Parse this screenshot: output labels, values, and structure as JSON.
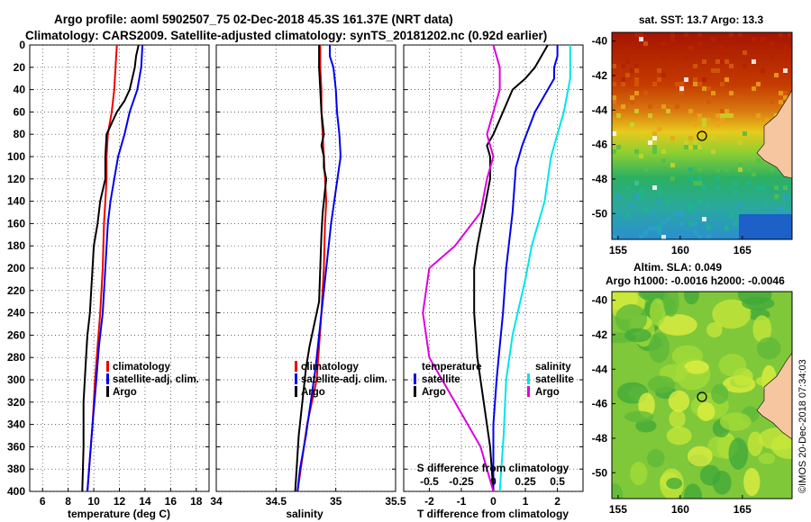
{
  "header": {
    "title_line1": "Argo profile: aoml 5902507_75 02-Dec-2018 45.3S 161.37E (NRT data)",
    "title_line2": "Climatology: CARS2009. Satellite-adjusted climatology: synTS_20181202.nc (0.92d earlier)"
  },
  "credit": "©IMOS 20-Dec-2018 07:34:03",
  "colors": {
    "climatology": "#ee0000",
    "satellite": "#0000ee",
    "argo": "#000000",
    "sal_satellite": "#00e5e5",
    "sal_argo": "#dd00dd",
    "ocean_warm": "#c43a00",
    "land": "#f5c6a0"
  },
  "chart_data": [
    {
      "id": "temperature",
      "type": "line",
      "xlabel": "temperature (deg C)",
      "ylabel": "",
      "xlim": [
        5,
        19
      ],
      "ylim": [
        0,
        400
      ],
      "x_ticks": [
        6,
        8,
        10,
        12,
        14,
        16,
        18
      ],
      "y_ticks": [
        0,
        20,
        40,
        60,
        80,
        100,
        120,
        140,
        160,
        180,
        200,
        220,
        240,
        260,
        280,
        300,
        320,
        340,
        360,
        380,
        400
      ],
      "legend": [
        "climatology",
        "satellite-adj. clim.",
        "Argo"
      ],
      "series": [
        {
          "name": "climatology",
          "color_key": "climatology",
          "points": [
            [
              11.8,
              0
            ],
            [
              11.7,
              20
            ],
            [
              11.6,
              40
            ],
            [
              11.4,
              60
            ],
            [
              11.1,
              80
            ],
            [
              11.0,
              100
            ],
            [
              11.0,
              120
            ],
            [
              10.9,
              140
            ],
            [
              10.8,
              160
            ],
            [
              10.7,
              200
            ],
            [
              10.5,
              240
            ],
            [
              10.3,
              270
            ],
            [
              10.1,
              300
            ],
            [
              9.9,
              340
            ],
            [
              9.7,
              370
            ],
            [
              9.5,
              400
            ]
          ]
        },
        {
          "name": "satellite-adj. clim.",
          "color_key": "satellite",
          "points": [
            [
              13.8,
              0
            ],
            [
              13.7,
              20
            ],
            [
              13.4,
              40
            ],
            [
              12.8,
              60
            ],
            [
              12.4,
              80
            ],
            [
              11.9,
              100
            ],
            [
              11.6,
              120
            ],
            [
              11.3,
              140
            ],
            [
              11.1,
              160
            ],
            [
              10.9,
              200
            ],
            [
              10.7,
              240
            ],
            [
              10.4,
              270
            ],
            [
              10.2,
              300
            ],
            [
              9.9,
              340
            ],
            [
              9.7,
              370
            ],
            [
              9.5,
              400
            ]
          ]
        },
        {
          "name": "Argo",
          "color_key": "argo",
          "points": [
            [
              13.5,
              0
            ],
            [
              13.3,
              10
            ],
            [
              13.2,
              20
            ],
            [
              12.8,
              40
            ],
            [
              12.4,
              50
            ],
            [
              11.8,
              60
            ],
            [
              11.4,
              70
            ],
            [
              11.0,
              80
            ],
            [
              10.9,
              100
            ],
            [
              10.9,
              120
            ],
            [
              10.5,
              140
            ],
            [
              10.3,
              160
            ],
            [
              10.0,
              180
            ],
            [
              9.9,
              200
            ],
            [
              9.8,
              220
            ],
            [
              9.7,
              240
            ],
            [
              9.5,
              260
            ],
            [
              9.4,
              280
            ],
            [
              9.3,
              300
            ],
            [
              9.2,
              320
            ],
            [
              9.2,
              360
            ],
            [
              9.1,
              400
            ]
          ]
        }
      ]
    },
    {
      "id": "salinity",
      "type": "line",
      "xlabel": "salinity",
      "ylabel": "",
      "xlim": [
        34,
        35.5
      ],
      "ylim": [
        0,
        400
      ],
      "x_ticks": [
        "34",
        "34.5",
        "35",
        "35.5"
      ],
      "legend": [
        "climatology",
        "satellite-adj. clim.",
        "Argo"
      ],
      "series": [
        {
          "name": "climatology",
          "color_key": "climatology",
          "points": [
            [
              34.87,
              0
            ],
            [
              34.87,
              20
            ],
            [
              34.88,
              40
            ],
            [
              34.88,
              60
            ],
            [
              34.89,
              80
            ],
            [
              34.9,
              100
            ],
            [
              34.91,
              120
            ],
            [
              34.92,
              140
            ],
            [
              34.91,
              160
            ],
            [
              34.9,
              200
            ],
            [
              34.88,
              240
            ],
            [
              34.86,
              270
            ],
            [
              34.84,
              300
            ],
            [
              34.76,
              340
            ],
            [
              34.72,
              370
            ],
            [
              34.68,
              400
            ]
          ]
        },
        {
          "name": "satellite-adj. clim.",
          "color_key": "satellite",
          "points": [
            [
              34.95,
              0
            ],
            [
              34.95,
              10
            ],
            [
              34.98,
              20
            ],
            [
              35.0,
              40
            ],
            [
              35.01,
              60
            ],
            [
              35.03,
              80
            ],
            [
              35.04,
              100
            ],
            [
              35.0,
              130
            ],
            [
              34.96,
              160
            ],
            [
              34.93,
              190
            ],
            [
              34.9,
              220
            ],
            [
              34.86,
              260
            ],
            [
              34.83,
              290
            ],
            [
              34.79,
              320
            ],
            [
              34.75,
              350
            ],
            [
              34.7,
              380
            ],
            [
              34.68,
              400
            ]
          ]
        },
        {
          "name": "Argo",
          "color_key": "argo",
          "points": [
            [
              34.86,
              0
            ],
            [
              34.86,
              20
            ],
            [
              34.87,
              40
            ],
            [
              34.88,
              60
            ],
            [
              34.9,
              80
            ],
            [
              34.88,
              90
            ],
            [
              34.9,
              100
            ],
            [
              34.9,
              110
            ],
            [
              34.92,
              120
            ],
            [
              34.91,
              130
            ],
            [
              34.89,
              150
            ],
            [
              34.88,
              170
            ],
            [
              34.87,
              200
            ],
            [
              34.86,
              230
            ],
            [
              34.82,
              250
            ],
            [
              34.78,
              270
            ],
            [
              34.75,
              290
            ],
            [
              34.72,
              320
            ],
            [
              34.69,
              350
            ],
            [
              34.66,
              400
            ]
          ]
        }
      ]
    },
    {
      "id": "difference",
      "type": "line",
      "xlabel": "T difference from climatology",
      "xlabel_top": "S difference from climatology",
      "xlim": [
        -2.8,
        2.8
      ],
      "ylim": [
        0,
        400
      ],
      "x_ticks": [
        "-2",
        "-1",
        "0",
        "1",
        "2"
      ],
      "x_ticks_s": [
        "-0.5",
        "-0.25",
        "0",
        "0.25",
        "0.5"
      ],
      "legend_headers": [
        "temperature",
        "salinity"
      ],
      "legend_left": [
        "satellite",
        "Argo"
      ],
      "legend_right": [
        "satellite",
        "Argo"
      ],
      "series": [
        {
          "name": "T satellite",
          "color_key": "satellite",
          "points": [
            [
              2.0,
              0
            ],
            [
              2.0,
              10
            ],
            [
              1.9,
              20
            ],
            [
              1.9,
              30
            ],
            [
              1.7,
              40
            ],
            [
              1.3,
              60
            ],
            [
              0.9,
              90
            ],
            [
              0.7,
              110
            ],
            [
              0.6,
              150
            ],
            [
              0.4,
              200
            ],
            [
              0.3,
              240
            ],
            [
              0.2,
              270
            ],
            [
              0.1,
              300
            ],
            [
              0.0,
              340
            ],
            [
              0.0,
              400
            ]
          ]
        },
        {
          "name": "T Argo",
          "color_key": "argo",
          "points": [
            [
              1.7,
              0
            ],
            [
              1.5,
              10
            ],
            [
              1.3,
              20
            ],
            [
              1.0,
              30
            ],
            [
              0.6,
              40
            ],
            [
              0.3,
              60
            ],
            [
              0.0,
              80
            ],
            [
              -0.2,
              90
            ],
            [
              -0.1,
              100
            ],
            [
              -0.1,
              120
            ],
            [
              -0.3,
              150
            ],
            [
              -0.5,
              180
            ],
            [
              -0.6,
              200
            ],
            [
              -0.6,
              240
            ],
            [
              -0.5,
              280
            ],
            [
              -0.3,
              320
            ],
            [
              -0.1,
              360
            ],
            [
              0.0,
              400
            ]
          ]
        },
        {
          "name": "S satellite",
          "color_key": "sal_satellite",
          "points": [
            [
              0.6,
              0
            ],
            [
              0.6,
              10
            ],
            [
              0.6,
              30
            ],
            [
              0.55,
              60
            ],
            [
              0.5,
              80
            ],
            [
              0.45,
              100
            ],
            [
              0.4,
              140
            ],
            [
              0.3,
              180
            ],
            [
              0.25,
              210
            ],
            [
              0.15,
              260
            ],
            [
              0.1,
              300
            ],
            [
              0.08,
              350
            ],
            [
              0.05,
              400
            ]
          ]
        },
        {
          "name": "S Argo",
          "color_key": "sal_argo",
          "points": [
            [
              0.0,
              0
            ],
            [
              0.05,
              20
            ],
            [
              0.05,
              40
            ],
            [
              0.0,
              60
            ],
            [
              -0.05,
              80
            ],
            [
              0.0,
              100
            ],
            [
              -0.05,
              120
            ],
            [
              -0.1,
              150
            ],
            [
              -0.3,
              180
            ],
            [
              -0.5,
              200
            ],
            [
              -0.55,
              240
            ],
            [
              -0.5,
              280
            ],
            [
              -0.3,
              320
            ],
            [
              -0.1,
              360
            ],
            [
              0.0,
              400
            ]
          ]
        }
      ]
    },
    {
      "id": "sst_map",
      "type": "heatmap",
      "title": "sat. SST: 13.7  Argo: 13.3",
      "xlim": [
        154.5,
        169
      ],
      "ylim": [
        -51.5,
        -39.5
      ],
      "x_ticks": [
        "155",
        "160",
        "165"
      ],
      "y_ticks": [
        "-40",
        "-42",
        "-44",
        "-46",
        "-48",
        "-50"
      ],
      "float_position": [
        161.37,
        -45.3
      ]
    },
    {
      "id": "sla_map",
      "type": "heatmap",
      "title_line1": "Altim. SLA: 0.049",
      "title_line2": "Argo h1000: -0.0016 h2000: -0.0046",
      "xlim": [
        154.5,
        169
      ],
      "ylim": [
        -51.5,
        -39.5
      ],
      "x_ticks": [
        "155",
        "160",
        "165"
      ],
      "y_ticks": [
        "-40",
        "-42",
        "-44",
        "-46",
        "-48",
        "-50"
      ],
      "float_position": [
        161.37,
        -45.3
      ]
    }
  ]
}
